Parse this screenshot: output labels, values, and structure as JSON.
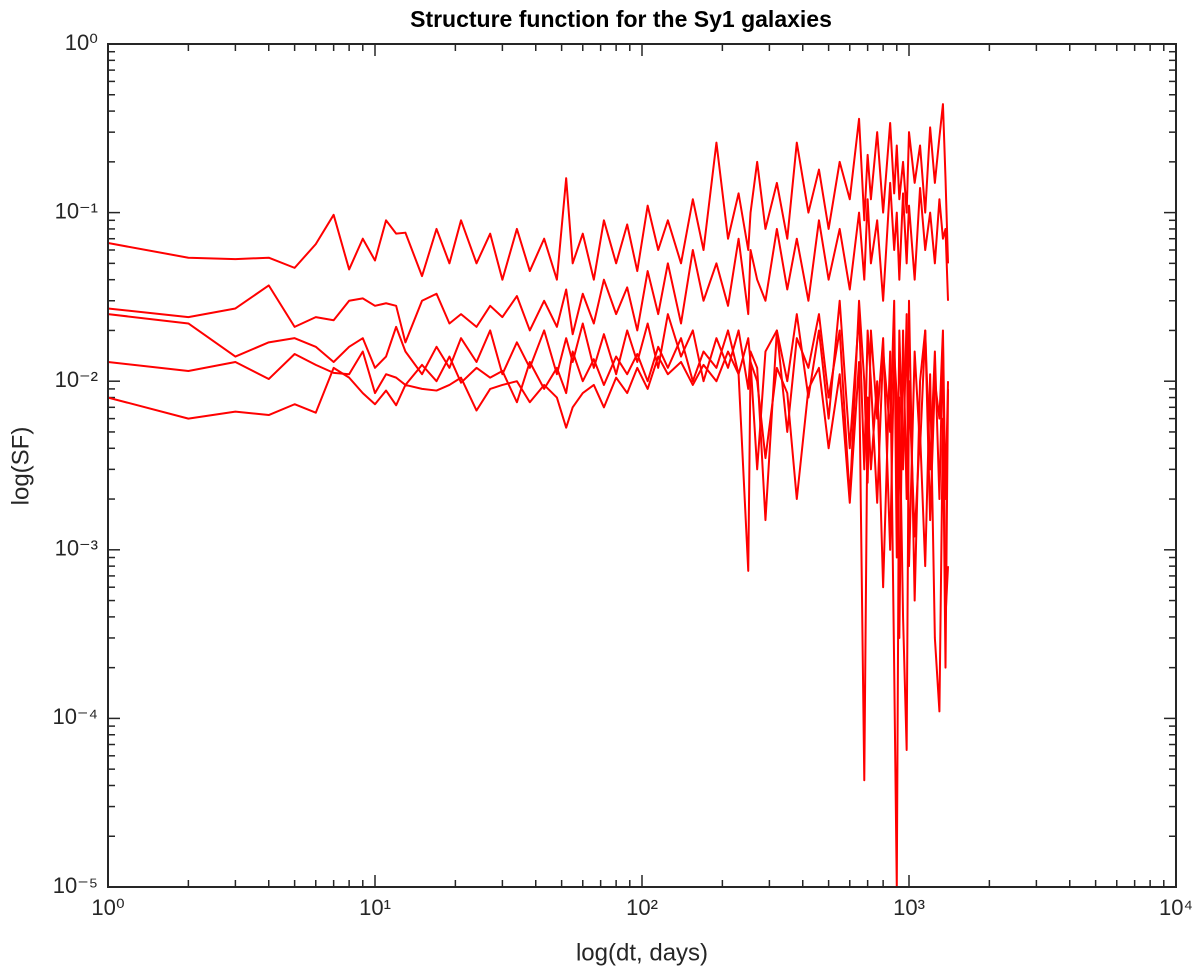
{
  "chart_data": {
    "type": "line",
    "title": "Structure function for the Sy1 galaxies",
    "xlabel": "log(dt, days)",
    "ylabel": "log(SF)",
    "xscale": "log",
    "yscale": "log",
    "grid": false,
    "xlim": [
      1,
      10000
    ],
    "ylim": [
      1e-05,
      1
    ],
    "xticks": [
      {
        "value": 1,
        "label": "10⁰"
      },
      {
        "value": 10,
        "label": "10¹"
      },
      {
        "value": 100,
        "label": "10²"
      },
      {
        "value": 1000,
        "label": "10³"
      },
      {
        "value": 10000,
        "label": "10⁴"
      }
    ],
    "yticks": [
      {
        "value": 1e-05,
        "label": "10⁻⁵"
      },
      {
        "value": 0.0001,
        "label": "10⁻⁴"
      },
      {
        "value": 0.001,
        "label": "10⁻³"
      },
      {
        "value": 0.01,
        "label": "10⁻²"
      },
      {
        "value": 0.1,
        "label": "10⁻¹"
      },
      {
        "value": 1,
        "label": "10⁰"
      }
    ],
    "x": [
      1,
      2,
      3,
      4,
      5,
      6,
      7,
      8,
      9,
      10,
      11,
      12,
      13,
      15,
      17,
      19,
      21,
      24,
      27,
      30,
      34,
      38,
      43,
      48,
      52,
      55,
      60,
      66,
      72,
      80,
      88,
      96,
      105,
      115,
      125,
      140,
      155,
      170,
      190,
      210,
      230,
      250,
      255,
      270,
      290,
      320,
      350,
      380,
      420,
      460,
      500,
      550,
      600,
      650,
      680,
      700,
      720,
      760,
      800,
      850,
      880,
      900,
      920,
      950,
      980,
      1000,
      1050,
      1100,
      1150,
      1200,
      1250,
      1300,
      1340,
      1370,
      1400
    ],
    "series": [
      {
        "color": "#ff0000",
        "values": [
          0.066,
          0.054,
          0.053,
          0.054,
          0.047,
          0.065,
          0.097,
          0.046,
          0.07,
          0.052,
          0.09,
          0.075,
          0.076,
          0.042,
          0.08,
          0.05,
          0.09,
          0.05,
          0.075,
          0.04,
          0.08,
          0.045,
          0.07,
          0.04,
          0.16,
          0.05,
          0.075,
          0.04,
          0.09,
          0.05,
          0.085,
          0.045,
          0.11,
          0.06,
          0.09,
          0.05,
          0.12,
          0.06,
          0.26,
          0.07,
          0.13,
          0.06,
          0.1,
          0.2,
          0.08,
          0.15,
          0.07,
          0.26,
          0.1,
          0.18,
          0.08,
          0.2,
          0.12,
          0.36,
          0.09,
          0.22,
          0.12,
          0.3,
          0.1,
          0.34,
          0.13,
          0.25,
          0.12,
          0.2,
          0.1,
          0.3,
          0.15,
          0.25,
          0.1,
          0.32,
          0.15,
          0.28,
          0.44,
          0.16,
          0.05
        ]
      },
      {
        "color": "#ff0000",
        "values": [
          0.027,
          0.024,
          0.027,
          0.037,
          0.021,
          0.024,
          0.023,
          0.03,
          0.031,
          0.028,
          0.029,
          0.028,
          0.017,
          0.03,
          0.033,
          0.022,
          0.025,
          0.021,
          0.028,
          0.024,
          0.032,
          0.02,
          0.03,
          0.021,
          0.035,
          0.019,
          0.033,
          0.022,
          0.04,
          0.025,
          0.036,
          0.02,
          0.045,
          0.025,
          0.05,
          0.022,
          0.06,
          0.03,
          0.05,
          0.028,
          0.07,
          0.025,
          0.06,
          0.04,
          0.03,
          0.08,
          0.035,
          0.07,
          0.03,
          0.09,
          0.04,
          0.08,
          0.035,
          0.1,
          0.04,
          0.12,
          0.05,
          0.09,
          0.03,
          0.15,
          0.06,
          0.1,
          0.04,
          0.13,
          0.05,
          0.11,
          0.04,
          0.14,
          0.06,
          0.1,
          0.05,
          0.12,
          0.07,
          0.08,
          0.03
        ]
      },
      {
        "color": "#ff0000",
        "values": [
          0.025,
          0.022,
          0.014,
          0.017,
          0.018,
          0.016,
          0.013,
          0.016,
          0.018,
          0.012,
          0.014,
          0.021,
          0.015,
          0.011,
          0.016,
          0.012,
          0.018,
          0.013,
          0.02,
          0.011,
          0.017,
          0.012,
          0.02,
          0.011,
          0.018,
          0.013,
          0.022,
          0.012,
          0.019,
          0.011,
          0.02,
          0.013,
          0.022,
          0.012,
          0.025,
          0.014,
          0.02,
          0.01,
          0.018,
          0.012,
          0.02,
          0.009,
          0.015,
          0.012,
          0.0015,
          0.02,
          0.01,
          0.025,
          0.008,
          0.02,
          0.006,
          0.03,
          0.004,
          0.025,
          0.003,
          0.02,
          0.01,
          0.0019,
          0.015,
          0.005,
          0.03,
          0.0009,
          0.02,
          0.003,
          0.025,
          0.0008,
          0.015,
          0.004,
          0.02,
          0.0015,
          0.01,
          0.006,
          0.02,
          0.002,
          0.01
        ]
      },
      {
        "color": "#ff0000",
        "values": [
          0.013,
          0.0115,
          0.013,
          0.0103,
          0.0145,
          0.0125,
          0.0112,
          0.011,
          0.015,
          0.0085,
          0.011,
          0.0105,
          0.0095,
          0.0125,
          0.01,
          0.014,
          0.0098,
          0.012,
          0.0105,
          0.0115,
          0.0075,
          0.013,
          0.009,
          0.012,
          0.0085,
          0.015,
          0.01,
          0.0135,
          0.0095,
          0.014,
          0.011,
          0.0145,
          0.01,
          0.016,
          0.012,
          0.018,
          0.01,
          0.015,
          0.012,
          0.02,
          0.011,
          0.018,
          0.013,
          0.003,
          0.015,
          0.02,
          0.005,
          0.018,
          0.012,
          0.025,
          0.008,
          0.02,
          0.002,
          0.03,
          0.01,
          0.0025,
          0.02,
          0.006,
          0.018,
          0.001,
          0.015,
          0.008,
          0.0003,
          0.02,
          0.002,
          0.03,
          0.0005,
          0.01,
          0.02,
          0.003,
          0.015,
          0.002,
          0.018,
          0.0004,
          0.0008
        ]
      },
      {
        "color": "#ff0000",
        "values": [
          0.008,
          0.006,
          0.0066,
          0.0063,
          0.0073,
          0.0065,
          0.012,
          0.0105,
          0.0085,
          0.0073,
          0.0088,
          0.0072,
          0.0095,
          0.009,
          0.0088,
          0.0095,
          0.0105,
          0.0067,
          0.009,
          0.0095,
          0.01,
          0.0075,
          0.0095,
          0.008,
          0.0053,
          0.007,
          0.0085,
          0.0095,
          0.007,
          0.0105,
          0.0085,
          0.012,
          0.009,
          0.014,
          0.011,
          0.013,
          0.0095,
          0.0125,
          0.01,
          0.015,
          0.011,
          0.00075,
          0.013,
          0.01,
          0.0035,
          0.012,
          0.0085,
          0.002,
          0.009,
          0.012,
          0.004,
          0.011,
          0.0019,
          0.013,
          4.3e-05,
          0.008,
          0.003,
          0.01,
          0.0006,
          0.015,
          0.0002,
          1e-05,
          0.008,
          0.0004,
          6.5e-05,
          0.01,
          0.0012,
          0.005,
          0.0008,
          0.011,
          0.0003,
          0.00011,
          0.006,
          0.0002,
          0.009
        ]
      }
    ]
  }
}
